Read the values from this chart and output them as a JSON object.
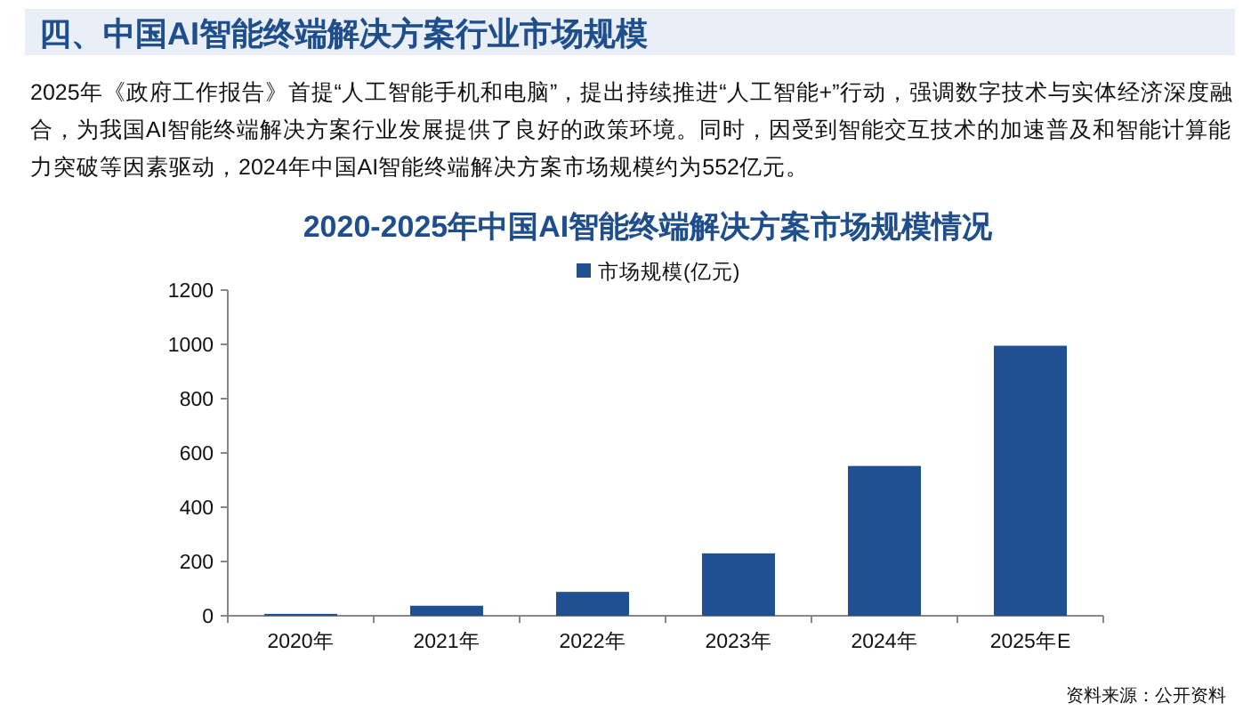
{
  "chart_data": {
    "type": "bar",
    "title": "2020-2025年中国AI智能终端解决方案市场规模情况",
    "annotations": [
      "四、中国AI智能终端解决方案行业市场规模",
      "2025年《政府工作报告》首提“人工智能手机和电脑”，提出持续推进“人工智能+”行动，强调数字技术与实体经济深度融合，为我国AI智能终端解决方案行业发展提供了良好的政策环境。同时，因受到智能交互技术的加速普及和智能计算能力突破等因素驱动，2024年中国AI智能终端解决方案市场规模约为552亿元。",
      "资料来源：公开资料"
    ],
    "categories": [
      "2020年",
      "2021年",
      "2022年",
      "2023年",
      "2024年",
      "2025年E"
    ],
    "series": [
      {
        "name": "市场规模(亿元)",
        "color": "#1f5091",
        "values": [
          7,
          37,
          88,
          230,
          552,
          995
        ]
      }
    ],
    "ylim": [
      0,
      1200
    ],
    "yticks": [
      0,
      200,
      400,
      600,
      800,
      1000,
      1200
    ],
    "legend": "top"
  }
}
